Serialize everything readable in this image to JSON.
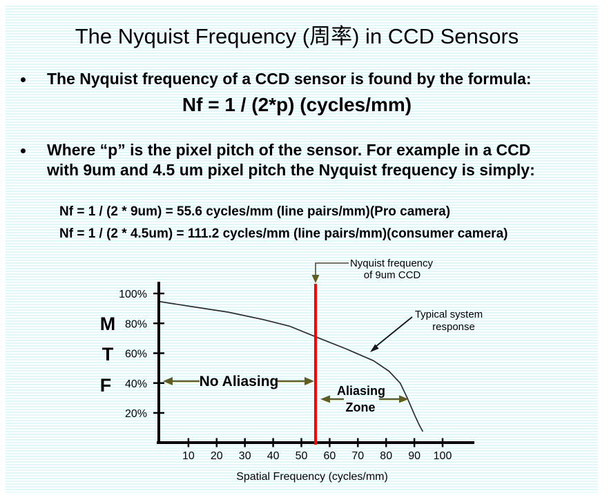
{
  "slide": {
    "title": "The Nyquist Frequency (周率) in CCD Sensors",
    "bullet1": {
      "text": "The Nyquist frequency of a CCD sensor is found by the formula:",
      "formula": "Nf = 1 / (2*p) (cycles/mm)"
    },
    "bullet2": {
      "line1": "Where “p” is the pixel pitch of the sensor. For example in a CCD",
      "line2": "with 9um and 4.5 um pixel pitch the Nyquist frequency is simply:"
    },
    "examples": {
      "pro": "Nf = 1 / (2 * 9um) = 55.6 cycles/mm (line pairs/mm)(Pro camera)",
      "consumer": "Nf = 1 / (2 * 4.5um) = 111.2 cycles/mm (line pairs/mm)(consumer camera)"
    }
  },
  "chart_data": {
    "type": "line",
    "title": "",
    "xlabel": "Spatial Frequency (cycles/mm)",
    "ylabel": "MTF",
    "ylabel_letters": [
      "M",
      "T",
      "F"
    ],
    "x_ticks": [
      10,
      20,
      30,
      40,
      50,
      60,
      70,
      80,
      90,
      100
    ],
    "y_ticks": [
      100,
      80,
      60,
      40,
      20
    ],
    "y_tick_suffix": "%",
    "xlim": [
      0,
      108
    ],
    "ylim": [
      0,
      107
    ],
    "grid": false,
    "series": [
      {
        "name": "Typical system response",
        "points": [
          [
            0,
            94.5
          ],
          [
            12,
            91
          ],
          [
            24,
            87.5
          ],
          [
            36.5,
            82.5
          ],
          [
            46,
            78
          ],
          [
            55.7,
            70.5
          ],
          [
            65.7,
            63
          ],
          [
            75.5,
            55
          ],
          [
            81,
            48
          ],
          [
            85,
            40
          ],
          [
            87.5,
            30
          ],
          [
            90,
            19
          ],
          [
            91.7,
            12
          ],
          [
            93,
            7.5
          ]
        ]
      }
    ],
    "nyquist_line": {
      "x": 55,
      "color": "#ff0000",
      "label_line1": "Nyquist frequency",
      "label_line2": "of 9um CCD"
    },
    "annotations": {
      "no_aliasing": "No Aliasing",
      "aliasing_line1": "Aliasing",
      "aliasing_line2": "Zone",
      "response_line1": "Typical system",
      "response_line2": "response"
    },
    "colors": {
      "curve": "#2b2b2b",
      "axis": "#000000",
      "olive_arrow": "#5e5e1e",
      "red": "#ff0000",
      "stripe": "#dff8fb"
    }
  }
}
